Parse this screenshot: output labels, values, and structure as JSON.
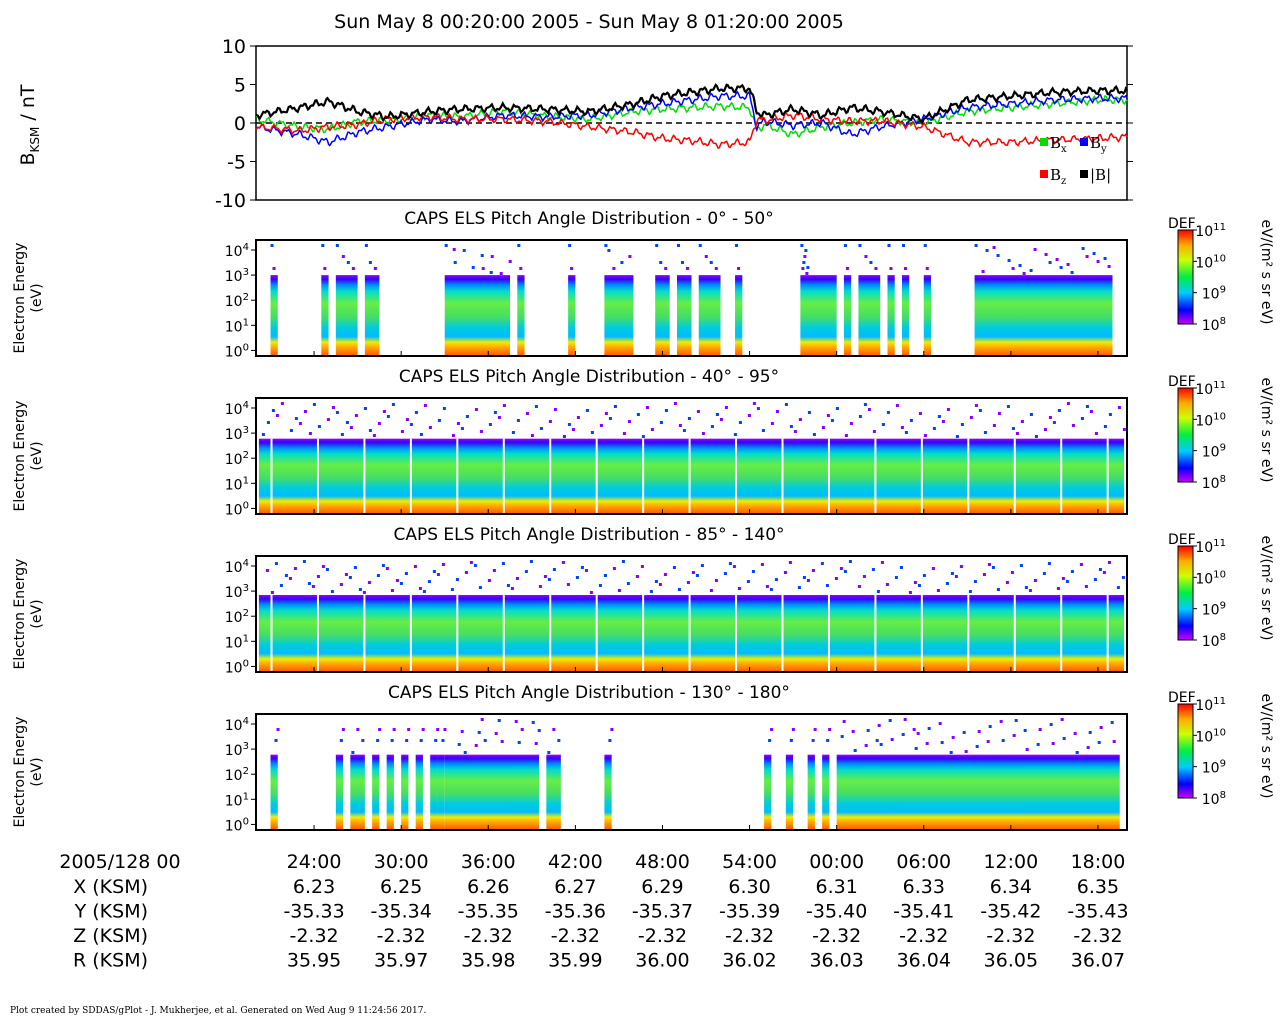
{
  "title": "Sun May 8 00:20:00 2005 - Sun May 8 01:20:00 2005",
  "footer": "Plot created by SDDAS/gPlot - J. Mukherjee, et al.  Generated on Wed Aug 9 11:24:56 2017.",
  "chart_data": [
    {
      "type": "line",
      "ylabel": "B",
      "ylabel_sub": "KSM",
      "ylabel_unit": " / nT",
      "ylim": [
        -10,
        10
      ],
      "yticks": [
        "10",
        "5",
        "0",
        "-5",
        "-10"
      ],
      "x_minutes": [
        0,
        3,
        5,
        7,
        9,
        12,
        14,
        17,
        20,
        23,
        26,
        28,
        30,
        32,
        34,
        34.5,
        35,
        37,
        39,
        41,
        43,
        46,
        49,
        52,
        55,
        58,
        60
      ],
      "series": [
        {
          "name": "Bx",
          "color": "#00dd00",
          "values": [
            0.5,
            -0.5,
            -0.8,
            0.2,
            0.3,
            1.0,
            0.8,
            1.5,
            0.9,
            0.5,
            1.5,
            1.8,
            2.0,
            2.2,
            2.0,
            -1.0,
            -0.2,
            -1.5,
            -0.5,
            0,
            0.5,
            0,
            1.5,
            2.0,
            2.5,
            3.0,
            3.0
          ]
        },
        {
          "name": "By",
          "color": "#0000ff",
          "values": [
            -0.5,
            -1.5,
            -2.5,
            -1.2,
            -0.5,
            0.5,
            0.2,
            1.0,
            0.8,
            1.0,
            2.0,
            2.5,
            3.0,
            3.5,
            3.5,
            -0.5,
            0.2,
            -0.3,
            0,
            -1.5,
            -0.5,
            0.5,
            2.0,
            2.5,
            3.0,
            3.2,
            3.2
          ]
        },
        {
          "name": "Bz",
          "color": "#ff0000",
          "values": [
            -0.5,
            -1.0,
            -0.5,
            -0.2,
            0.5,
            0.8,
            0.5,
            0.5,
            0.2,
            -0.5,
            -1.2,
            -2.0,
            -2.3,
            -2.8,
            -2.5,
            0.5,
            0.3,
            1.0,
            0.5,
            0.2,
            0.3,
            -0.5,
            -2.5,
            -2.5,
            -2.2,
            -2.0,
            -1.8
          ]
        },
        {
          "name": "|B|",
          "color": "#000000",
          "values": [
            1.0,
            2.0,
            2.8,
            1.5,
            0.8,
            1.5,
            1.8,
            2.0,
            1.8,
            1.5,
            2.5,
            3.5,
            4.0,
            4.5,
            4.5,
            1.5,
            1.0,
            1.8,
            1.0,
            2.0,
            1.5,
            0.5,
            3.0,
            3.5,
            4.0,
            4.2,
            4.2
          ]
        }
      ],
      "legend": [
        {
          "label": "B",
          "sub": "x",
          "color": "#00dd00"
        },
        {
          "label": "B",
          "sub": "y",
          "color": "#0000ff"
        },
        {
          "label": "B",
          "sub": "z",
          "color": "#ff0000"
        },
        {
          "label": "|B|",
          "sub": "",
          "color": "#000000"
        }
      ],
      "zero_line": "dashed"
    },
    {
      "type": "heatmap",
      "title": "CAPS ELS Pitch Angle Distribution - 0° - 50°",
      "ylabel": [
        "Electron Energy",
        "(eV)"
      ],
      "yscale": "log",
      "ylim": [
        0.6,
        25000
      ],
      "ytick_labels": [
        {
          "b": "10",
          "e": "4"
        },
        {
          "b": "10",
          "e": "3"
        },
        {
          "b": "10",
          "e": "2"
        },
        {
          "b": "10",
          "e": "1"
        },
        {
          "b": "10",
          "e": "0"
        }
      ],
      "colorbar": {
        "label": "DEF",
        "unit": "eV/(m² s sr eV)",
        "ticks": [
          {
            "b": "10",
            "e": "11"
          },
          {
            "b": "10",
            "e": "10"
          },
          {
            "b": "10",
            "e": "9"
          },
          {
            "b": "10",
            "e": "8"
          }
        ],
        "range": [
          8,
          11
        ]
      },
      "coverage": "sparse",
      "cutoff": "~1000 eV",
      "data_minutes": [
        [
          1,
          1.5
        ],
        [
          4.5,
          5
        ],
        [
          5.5,
          7
        ],
        [
          7.5,
          8.5
        ],
        [
          13,
          17.5
        ],
        [
          18,
          18.5
        ],
        [
          21.5,
          22
        ],
        [
          24,
          26
        ],
        [
          27.5,
          28.5
        ],
        [
          29,
          30
        ],
        [
          30.5,
          32
        ],
        [
          33,
          33.5
        ],
        [
          37.5,
          40
        ],
        [
          40.5,
          41
        ],
        [
          41.5,
          43
        ],
        [
          43.5,
          44
        ],
        [
          44.5,
          45
        ],
        [
          46,
          46.5
        ],
        [
          49.5,
          59
        ]
      ]
    },
    {
      "type": "heatmap",
      "title": "CAPS ELS Pitch Angle Distribution - 40° - 95°",
      "ylabel": [
        "Electron Energy",
        "(eV)"
      ],
      "yscale": "log",
      "ylim": [
        0.6,
        25000
      ],
      "ytick_labels": [
        {
          "b": "10",
          "e": "4"
        },
        {
          "b": "10",
          "e": "3"
        },
        {
          "b": "10",
          "e": "2"
        },
        {
          "b": "10",
          "e": "1"
        },
        {
          "b": "10",
          "e": "0"
        }
      ],
      "colorbar": {
        "label": "DEF",
        "unit": "eV/(m² s sr eV)",
        "ticks": [
          {
            "b": "10",
            "e": "11"
          },
          {
            "b": "10",
            "e": "10"
          },
          {
            "b": "10",
            "e": "9"
          },
          {
            "b": "10",
            "e": "8"
          }
        ],
        "range": [
          8,
          11
        ]
      },
      "coverage": "continuous",
      "cutoff": "~600 eV"
    },
    {
      "type": "heatmap",
      "title": "CAPS ELS Pitch Angle Distribution - 85° - 140°",
      "ylabel": [
        "Electron Energy",
        "(eV)"
      ],
      "yscale": "log",
      "ylim": [
        0.6,
        25000
      ],
      "ytick_labels": [
        {
          "b": "10",
          "e": "4"
        },
        {
          "b": "10",
          "e": "3"
        },
        {
          "b": "10",
          "e": "2"
        },
        {
          "b": "10",
          "e": "1"
        },
        {
          "b": "10",
          "e": "0"
        }
      ],
      "colorbar": {
        "label": "DEF",
        "unit": "eV/(m² s sr eV)",
        "ticks": [
          {
            "b": "10",
            "e": "11"
          },
          {
            "b": "10",
            "e": "10"
          },
          {
            "b": "10",
            "e": "9"
          },
          {
            "b": "10",
            "e": "8"
          }
        ],
        "range": [
          8,
          11
        ]
      },
      "coverage": "continuous",
      "cutoff": "~700 eV"
    },
    {
      "type": "heatmap",
      "title": "CAPS ELS Pitch Angle Distribution - 130° - 180°",
      "ylabel": [
        "Electron Energy",
        "(eV)"
      ],
      "yscale": "log",
      "ylim": [
        0.6,
        25000
      ],
      "ytick_labels": [
        {
          "b": "10",
          "e": "4"
        },
        {
          "b": "10",
          "e": "3"
        },
        {
          "b": "10",
          "e": "2"
        },
        {
          "b": "10",
          "e": "1"
        },
        {
          "b": "10",
          "e": "0"
        }
      ],
      "colorbar": {
        "label": "DEF",
        "unit": "eV/(m² s sr eV)",
        "ticks": [
          {
            "b": "10",
            "e": "11"
          },
          {
            "b": "10",
            "e": "10"
          },
          {
            "b": "10",
            "e": "9"
          },
          {
            "b": "10",
            "e": "8"
          }
        ],
        "range": [
          8,
          11
        ]
      },
      "coverage": "sparse",
      "cutoff": "~600 eV",
      "data_minutes": [
        [
          1,
          1.5
        ],
        [
          5.5,
          6
        ],
        [
          6.5,
          7.5
        ],
        [
          8,
          8.5
        ],
        [
          9,
          9.5
        ],
        [
          10,
          10.5
        ],
        [
          11,
          11.5
        ],
        [
          12,
          12.5
        ],
        [
          12.5,
          13
        ],
        [
          13,
          19.5
        ],
        [
          20,
          21
        ],
        [
          24,
          24.5
        ],
        [
          35,
          35.5
        ],
        [
          36.5,
          37
        ],
        [
          38,
          38.5
        ],
        [
          39,
          39.5
        ],
        [
          40,
          59.5
        ]
      ]
    }
  ],
  "x_axis": {
    "label": "2005/128 00",
    "ticks_minutes": [
      4,
      10,
      16,
      22,
      28,
      34,
      40,
      46,
      52,
      58
    ],
    "tick_labels": [
      "24:00",
      "30:00",
      "36:00",
      "42:00",
      "48:00",
      "54:00",
      "00:00",
      "06:00",
      "12:00",
      "18:00"
    ],
    "ephemeris": [
      {
        "label": "X (KSM)",
        "values": [
          "6.23",
          "6.25",
          "6.26",
          "6.27",
          "6.29",
          "6.30",
          "6.31",
          "6.33",
          "6.34",
          "6.35"
        ]
      },
      {
        "label": "Y (KSM)",
        "values": [
          "-35.33",
          "-35.34",
          "-35.35",
          "-35.36",
          "-35.37",
          "-35.39",
          "-35.40",
          "-35.41",
          "-35.42",
          "-35.43"
        ]
      },
      {
        "label": "Z (KSM)",
        "values": [
          "-2.32",
          "-2.32",
          "-2.32",
          "-2.32",
          "-2.32",
          "-2.32",
          "-2.32",
          "-2.32",
          "-2.32",
          "-2.32"
        ]
      },
      {
        "label": "R (KSM)",
        "values": [
          "35.95",
          "35.97",
          "35.98",
          "35.99",
          "36.00",
          "36.02",
          "36.03",
          "36.04",
          "36.05",
          "36.07"
        ]
      }
    ]
  }
}
